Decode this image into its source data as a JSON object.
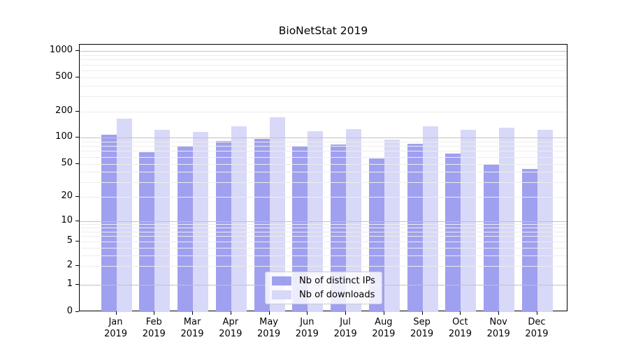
{
  "chart_data": {
    "type": "bar",
    "title": "BioNetStat 2019",
    "categories": [
      "Jan",
      "Feb",
      "Mar",
      "Apr",
      "May",
      "Jun",
      "Jul",
      "Aug",
      "Sep",
      "Oct",
      "Nov",
      "Dec"
    ],
    "category_year": "2019",
    "series": [
      {
        "name": "Nb of distinct IPs",
        "color": "#a0a0f0",
        "values": [
          108,
          68,
          80,
          91,
          96,
          78,
          83,
          57,
          85,
          65,
          50,
          43
        ]
      },
      {
        "name": "Nb of downloads",
        "color": "#d8d8f8",
        "values": [
          165,
          122,
          117,
          135,
          172,
          119,
          125,
          95,
          136,
          122,
          130,
          123
        ]
      }
    ],
    "y_ticks": [
      0,
      1,
      2,
      5,
      10,
      20,
      50,
      100,
      200,
      500,
      1000
    ],
    "y_scale": "symlog",
    "ylim": [
      0,
      1070
    ],
    "xlabel": "",
    "ylabel": "",
    "grid": true,
    "legend_position": "lower-center"
  }
}
